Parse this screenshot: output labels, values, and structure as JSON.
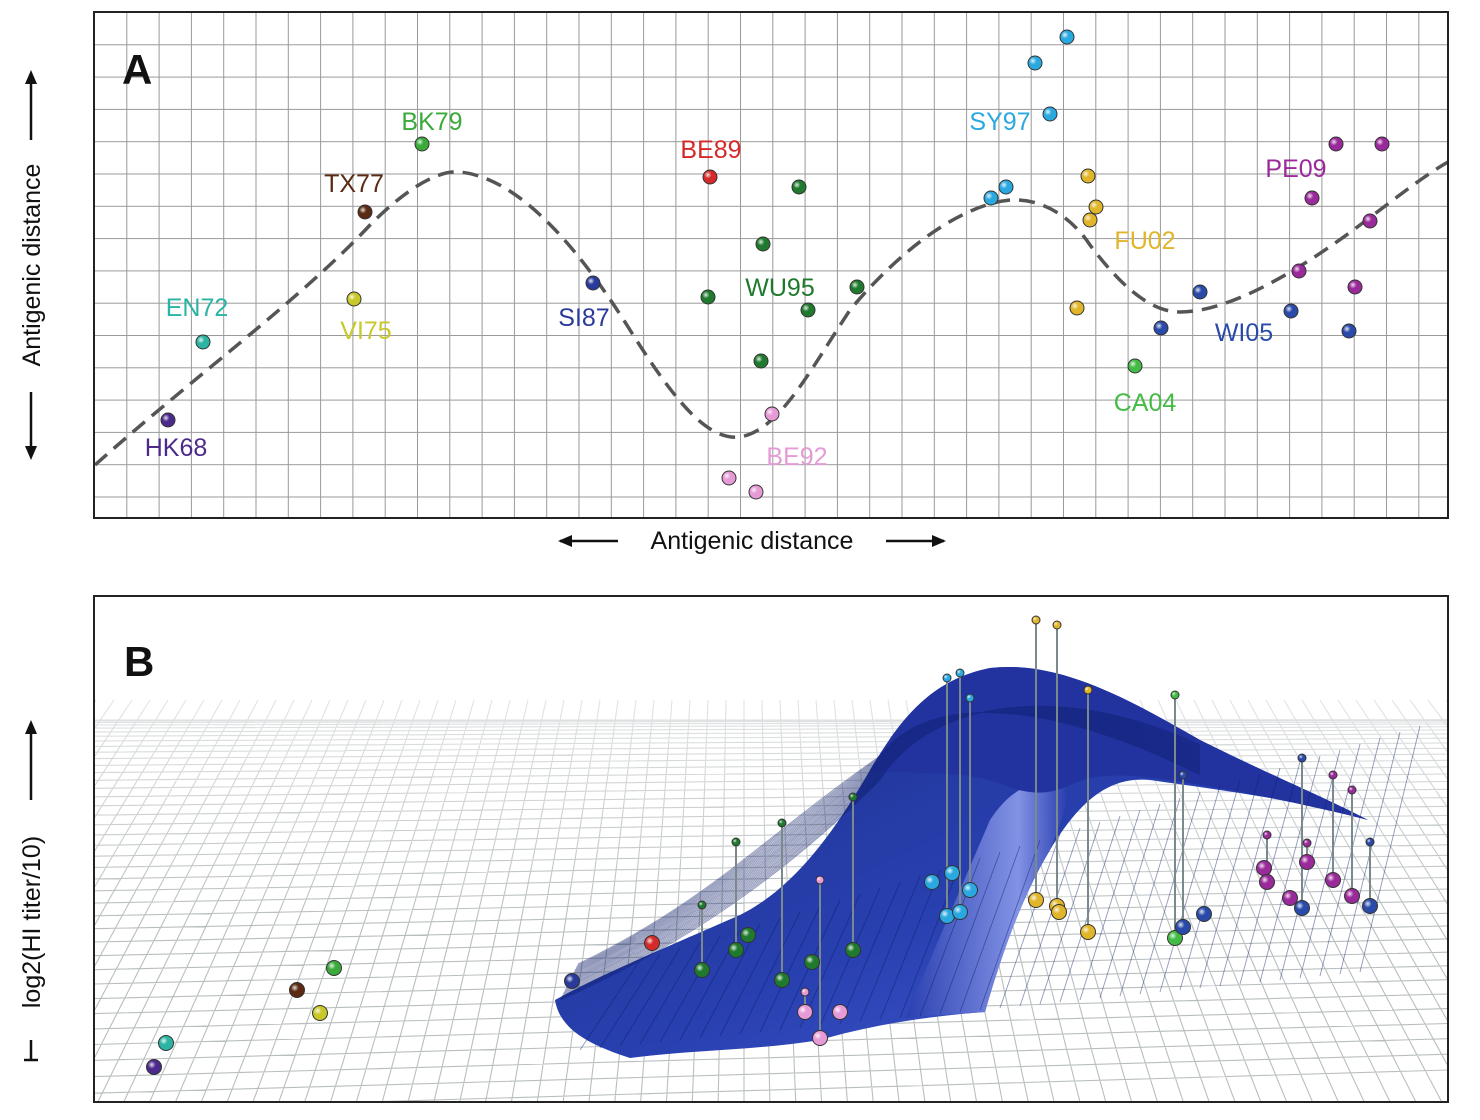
{
  "panel_a": {
    "letter": "A",
    "x_axis_label": "Antigenic distance",
    "y_axis_label": "Antigenic distance",
    "strains": [
      {
        "name": "HK68",
        "color": "#4b2a8c"
      },
      {
        "name": "EN72",
        "color": "#2bb3a3"
      },
      {
        "name": "VI75",
        "color": "#c8c82a"
      },
      {
        "name": "TX77",
        "color": "#5a2a12"
      },
      {
        "name": "BK79",
        "color": "#3aaa3a"
      },
      {
        "name": "SI87",
        "color": "#2a3a9a"
      },
      {
        "name": "BE89",
        "color": "#d42a2a"
      },
      {
        "name": "BE92",
        "color": "#e69ad6"
      },
      {
        "name": "WU95",
        "color": "#1f7a2e"
      },
      {
        "name": "SY97",
        "color": "#2aa8e0"
      },
      {
        "name": "FU02",
        "color": "#e0b52a"
      },
      {
        "name": "CA04",
        "color": "#44bb44"
      },
      {
        "name": "WI05",
        "color": "#2a4aaa"
      },
      {
        "name": "PE09",
        "color": "#9a2a9a"
      }
    ]
  },
  "panel_b": {
    "letter": "B",
    "y_axis_label": "log2(HI titer/10)"
  }
}
